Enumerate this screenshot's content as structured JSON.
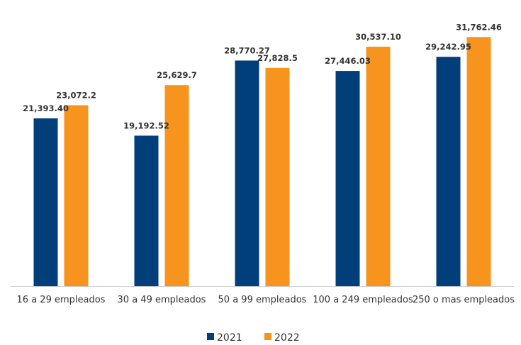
{
  "chart_data": {
    "type": "bar",
    "categories": [
      "16 a 29 empleados",
      "30 a 49 empleados",
      "50 a 99 empleados",
      "100 a 249 empleados",
      "250 o mas empleados"
    ],
    "series": [
      {
        "name": "2021",
        "color": "#003f7a",
        "values": [
          21393.4,
          19192.52,
          28770.27,
          27446.03,
          29242.95
        ],
        "labels": [
          "21,393.40",
          "19,192.52",
          "28,770.27",
          "27,446.03",
          "29,242.95"
        ]
      },
      {
        "name": "2022",
        "color": "#f7941d",
        "values": [
          23072.2,
          25629.7,
          27828.5,
          30537.1,
          31762.46
        ],
        "labels": [
          "23,072.2",
          "25,629.7",
          "27,828.5",
          "30,537.10",
          "31,762.46"
        ]
      }
    ],
    "ylim": [
      0,
      34500
    ],
    "grid": false,
    "legend_position": "bottom"
  }
}
